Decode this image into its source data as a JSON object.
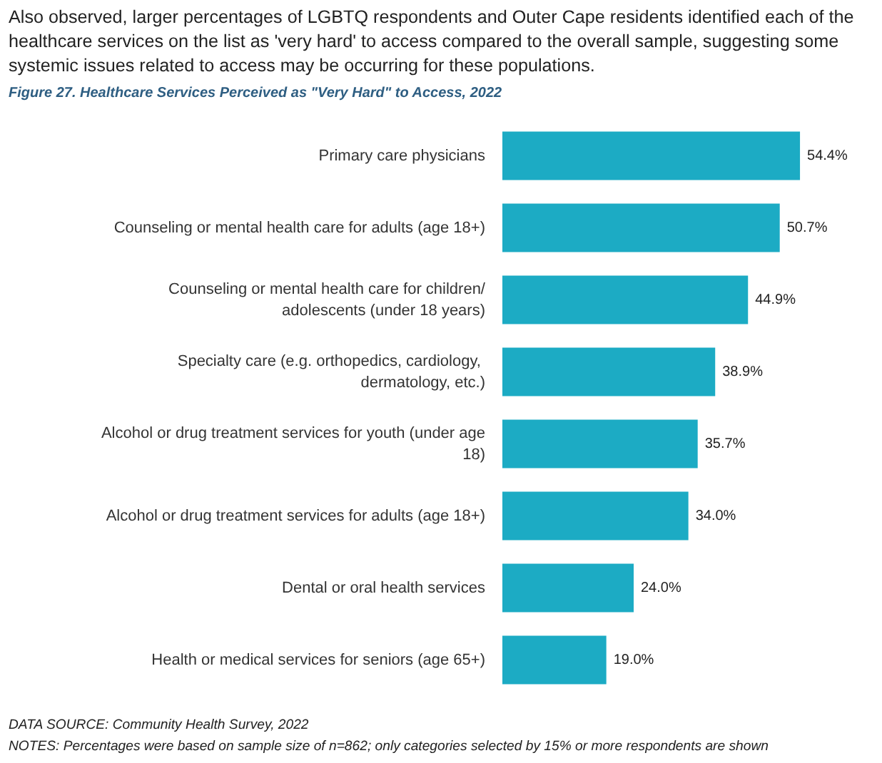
{
  "chart_data": {
    "type": "bar",
    "orientation": "horizontal",
    "title": "Figure 27. Healthcare Services Perceived as \"Very Hard\" to Access, 2022",
    "categories": [
      "Primary care physicians",
      "Counseling or mental health care for adults (age 18+)",
      "Counseling or mental health care for children/adolescents (under 18 years)",
      "Specialty care (e.g. orthopedics, cardiology, dermatology, etc.)",
      "Alcohol or drug treatment services for youth (under age 18)",
      "Alcohol or drug treatment services for adults (age 18+)",
      "Dental or oral health services",
      "Health or medical services for seniors (age 65+)"
    ],
    "values": [
      54.4,
      50.7,
      44.9,
      38.9,
      35.7,
      34.0,
      24.0,
      19.0
    ],
    "value_labels": [
      "54.4%",
      "50.7%",
      "44.9%",
      "38.9%",
      "35.7%",
      "34.0%",
      "24.0%",
      "19.0%"
    ],
    "color": "#1cabc4",
    "annotations": [
      "Also observed, larger percentages of LGBTQ respondents and Outer Cape residents identified each of the healthcare services on the list as 'very hard' to access compared to the overall sample, suggesting some systemic issues related to access may be occurring for these populations.",
      "DATA SOURCE: Community Health Survey, 2022",
      "NOTES: Percentages were based on sample size of n=862; only categories selected by 15% or more respondents are shown"
    ]
  }
}
